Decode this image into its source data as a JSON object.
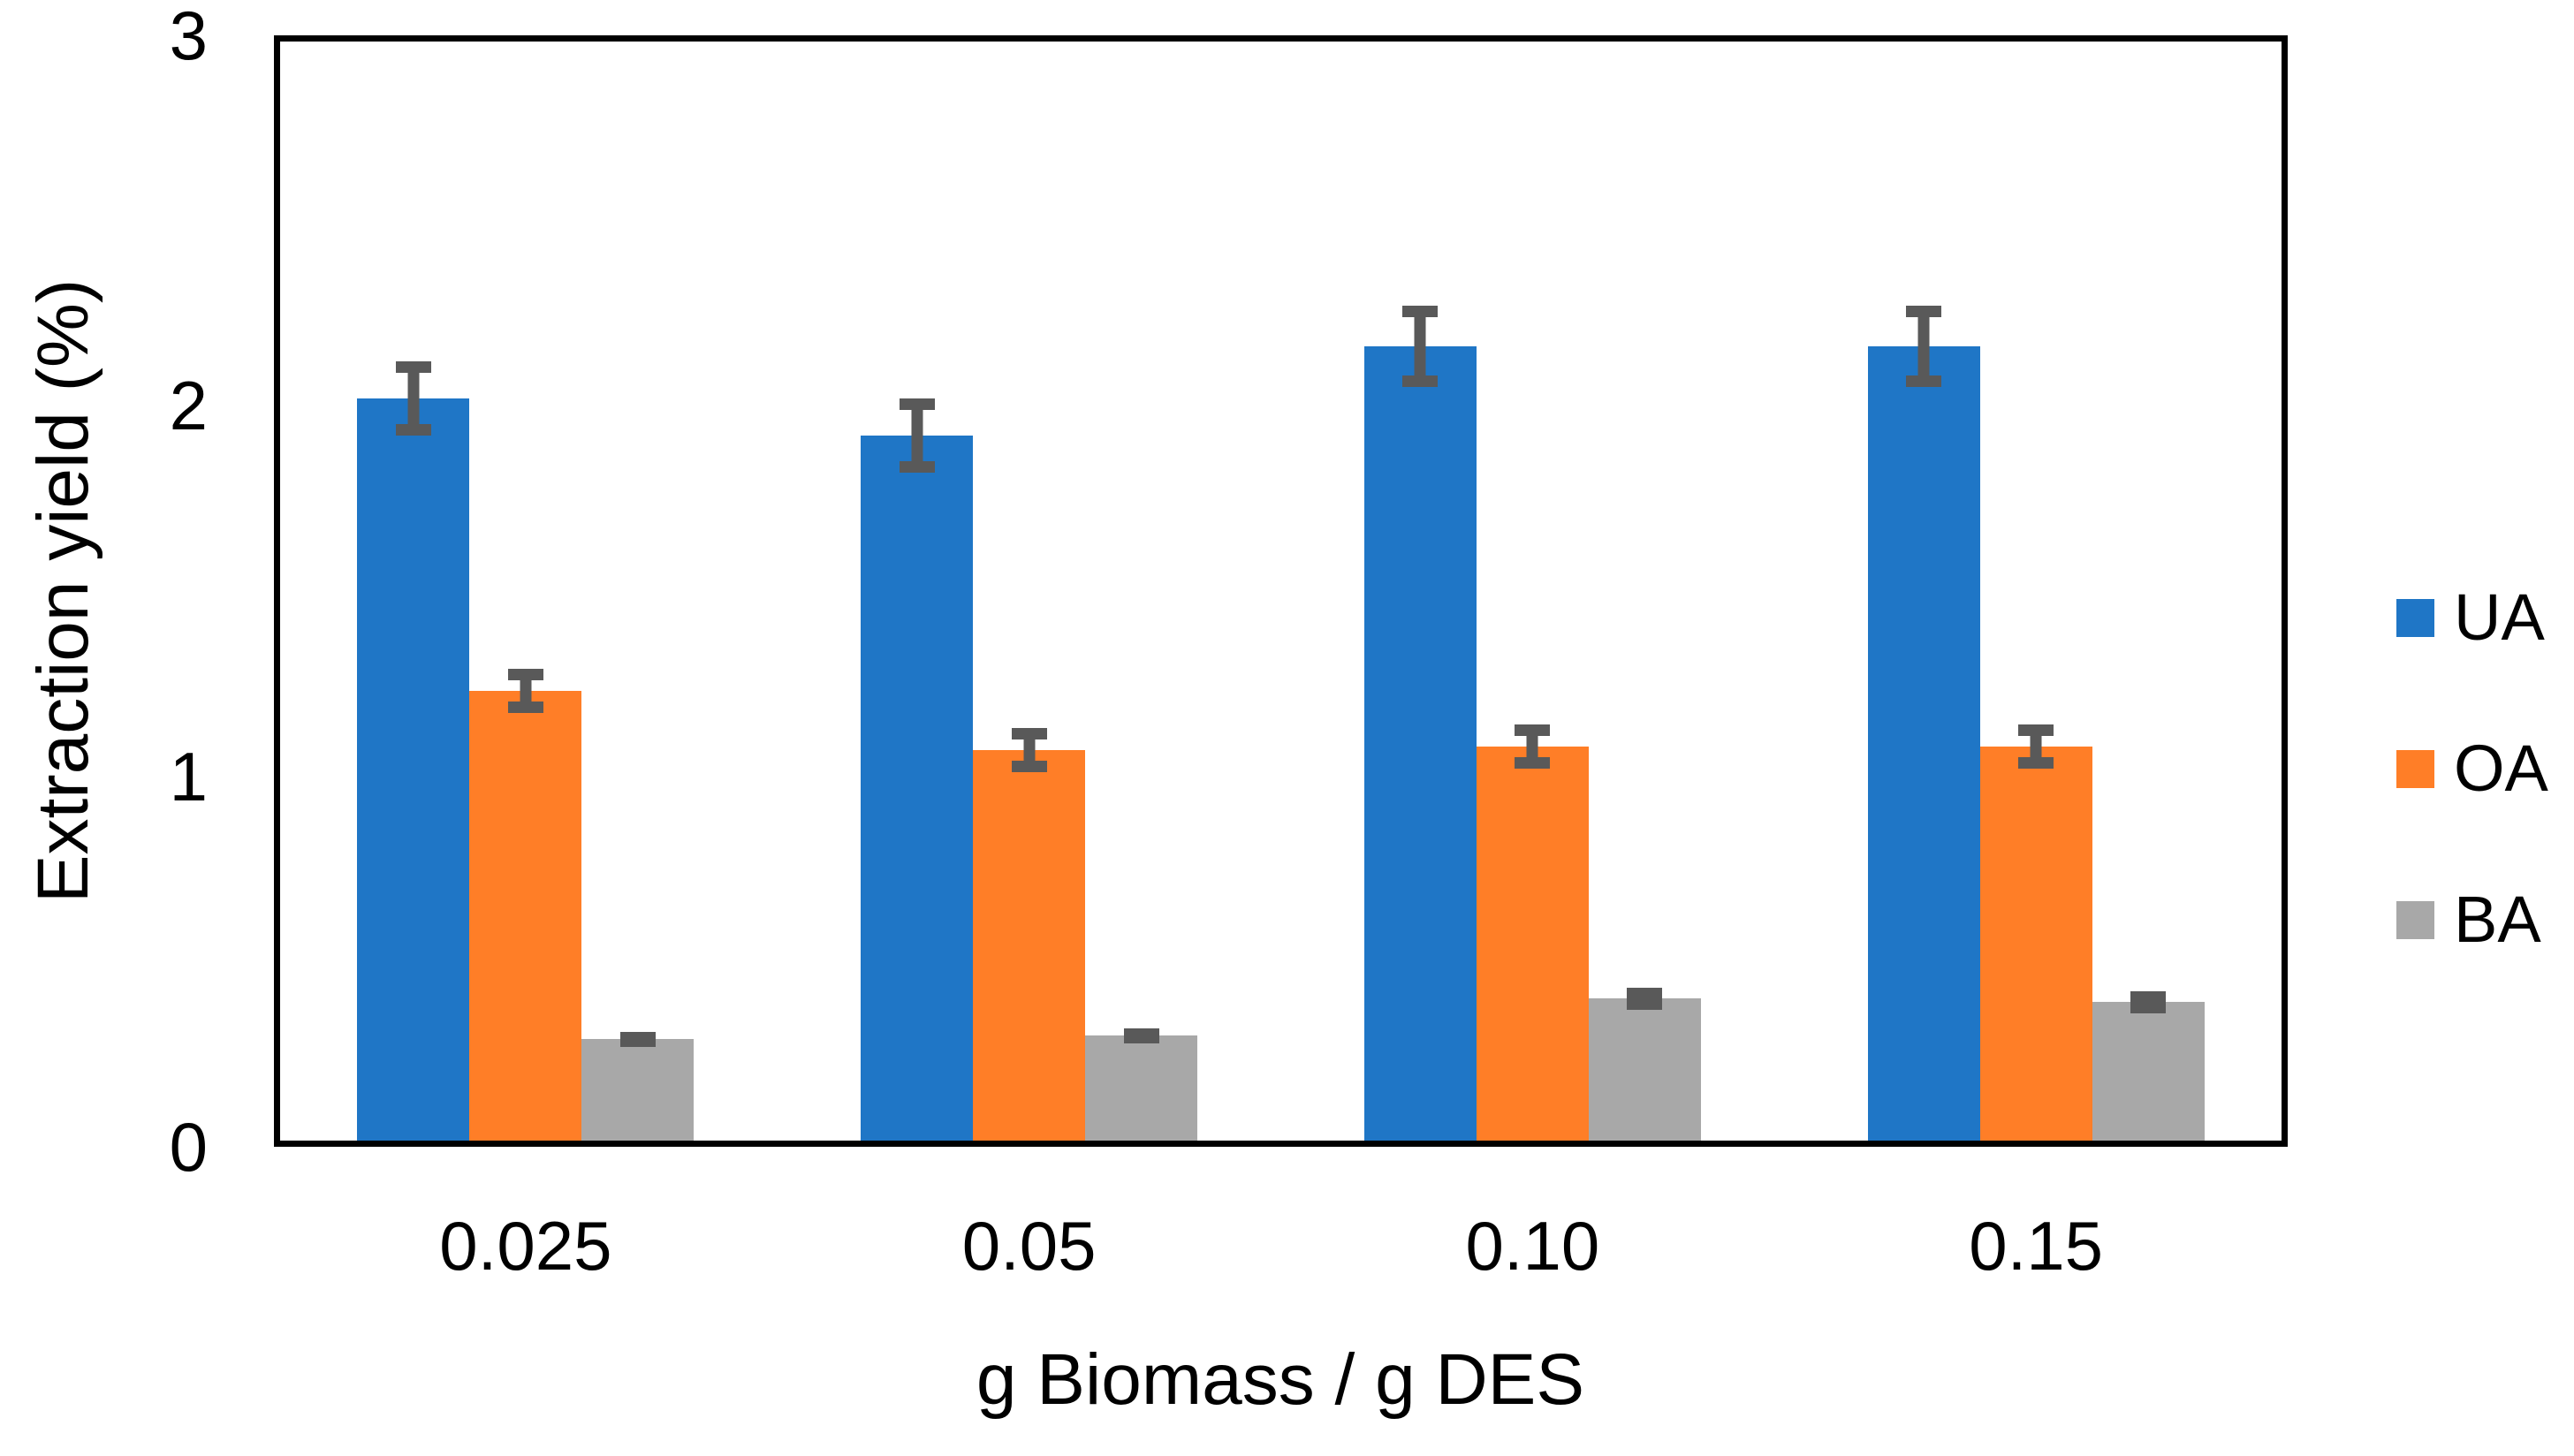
{
  "chart_data": {
    "type": "bar",
    "title": "",
    "xlabel": "g Biomass / g DES",
    "ylabel": "Extraction yield (%)",
    "categories": [
      "0.025",
      "0.05",
      "0.10",
      "0.15"
    ],
    "series": [
      {
        "name": "UA",
        "color": "#1F76C6",
        "values": [
          2.02,
          1.92,
          2.16,
          2.16
        ],
        "errors": [
          0.1,
          0.1,
          0.11,
          0.11
        ]
      },
      {
        "name": "OA",
        "color": "#FF7E27",
        "values": [
          1.23,
          1.07,
          1.08,
          1.08
        ],
        "errors": [
          0.06,
          0.06,
          0.06,
          0.06
        ]
      },
      {
        "name": "BA",
        "color": "#A8A8A8",
        "values": [
          0.29,
          0.3,
          0.4,
          0.39
        ],
        "errors": [
          0.02,
          0.02,
          0.03,
          0.03
        ]
      }
    ],
    "ylim": [
      0,
      3
    ],
    "yticks": [
      "0",
      "1",
      "2",
      "3"
    ],
    "grid": false,
    "legend_position": "right",
    "error_bar_color": "#595959",
    "axis_color": "#000000",
    "background_color": "#FFFFFF"
  }
}
